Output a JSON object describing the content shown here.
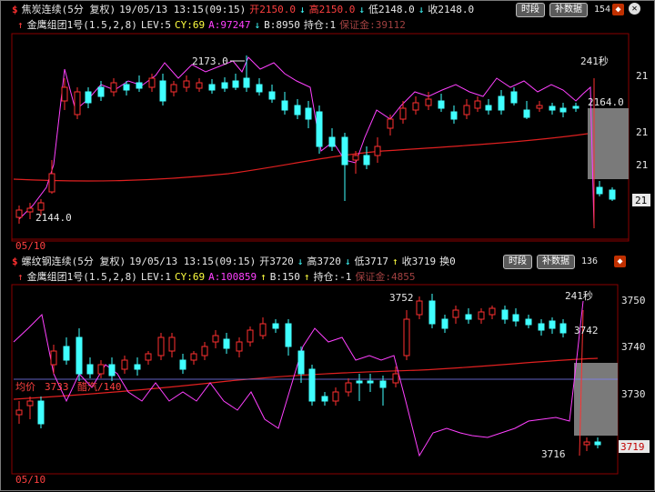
{
  "chart1": {
    "symbol_icon": "dollar-icon",
    "title": "焦炭连续(5分 复权)",
    "datetime": "19/05/13 13:15(09:15)",
    "open_label": "开2150.0",
    "high_label": "高2150.0",
    "low_label": "低2148.0",
    "close_label": "收2148.0",
    "btn_period": "时段",
    "btn_supplement": "补数据",
    "counter": "154",
    "indicator_name": "金鹰组团1号(1.5,2,8)",
    "lev": "LEV:5",
    "cy": "CY:69",
    "a": "A:97247",
    "b": "B:8950",
    "hold": "持仓:1",
    "margin": "保证金:39112",
    "high_mark": "2173.0",
    "low_mark": "2144.0",
    "seconds": "241秒",
    "price_right": "2164.0",
    "axis_1": "21",
    "axis_2": "21",
    "axis_3": "21",
    "axis_4": "21",
    "date_label": "05/10"
  },
  "chart2": {
    "symbol_icon": "dollar-icon",
    "title": "螺纹钢连续(5分 复权)",
    "datetime": "19/05/13 13:15(09:15)",
    "open_label": "开3720",
    "high_label": "高3720",
    "low_label": "低3717",
    "close_label": "收3719",
    "change_label": "换0",
    "btn_period": "时段",
    "btn_supplement": "补数据",
    "counter": "136",
    "indicator_name": "金鹰组团1号(1.5,2,8)",
    "lev": "LEV:1",
    "cy": "CY:69",
    "a": "A:100859",
    "b": "B:150",
    "hold": "持仓:-1",
    "margin": "保证金:4855",
    "high_mark": "3752",
    "low_mark": "3716",
    "seconds": "241秒",
    "price_right": "3742",
    "avg_label": "均价",
    "avg_value": "3733",
    "mid_text": "醋汽/140",
    "axis_3750": "3750",
    "axis_3740": "3740",
    "axis_3730": "3730",
    "axis_current": "3719",
    "date_label": "05/10"
  },
  "colors": {
    "up": "#ff3030",
    "down": "#40ffff",
    "indicator": "#ff40ff",
    "ma": "#e02020"
  }
}
